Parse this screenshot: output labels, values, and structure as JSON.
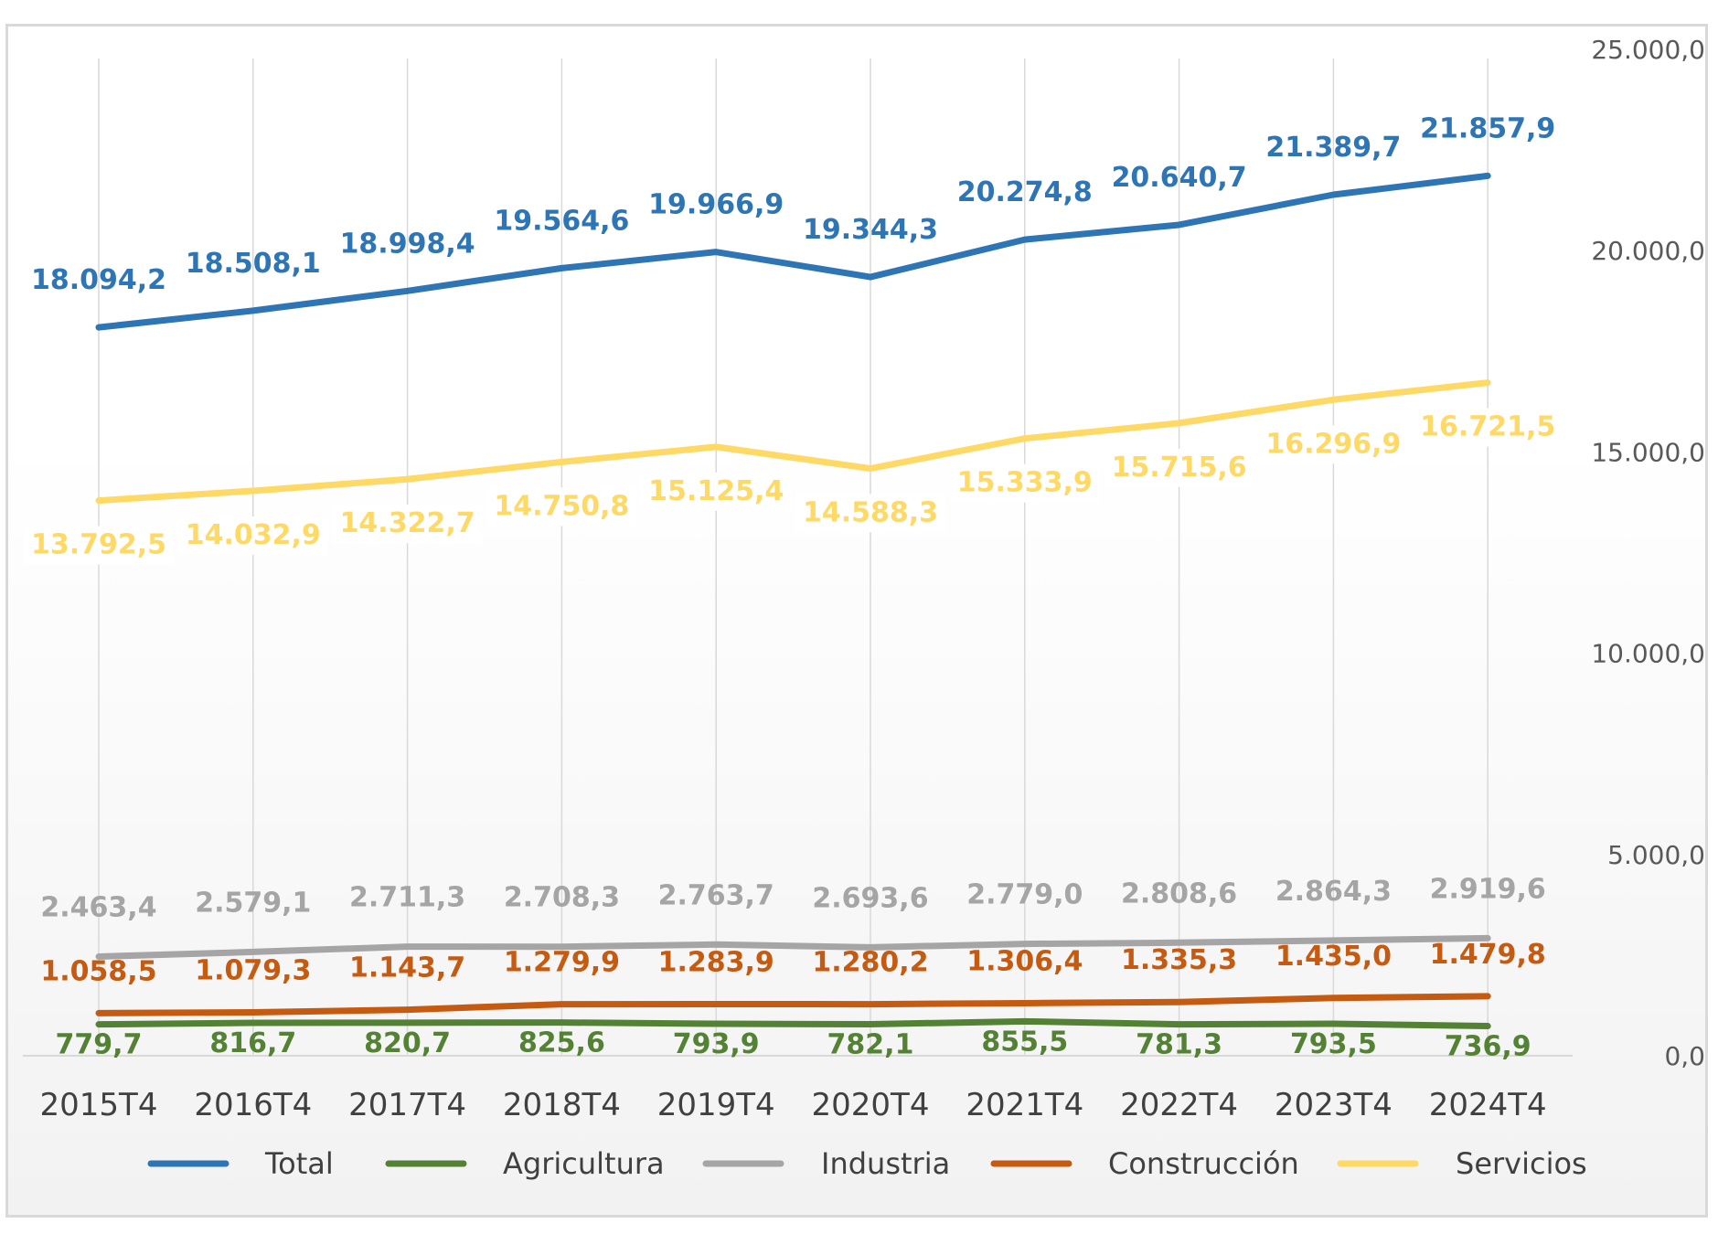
{
  "chart_data": {
    "type": "line",
    "title": "",
    "xlabel": "",
    "ylabel": "",
    "categories": [
      "2015T4",
      "2016T4",
      "2017T4",
      "2018T4",
      "2019T4",
      "2020T4",
      "2021T4",
      "2022T4",
      "2023T4",
      "2024T4"
    ],
    "ylim": [
      0,
      25000
    ],
    "y_axis_position": "right",
    "y_ticks": [
      "0,0",
      "5.000,0",
      "10.000,0",
      "15.000,0",
      "20.000,0",
      "25.000,0"
    ],
    "grid": "vertical",
    "legend_position": "bottom",
    "series": [
      {
        "name": "Total",
        "color": "#2e75b6",
        "values": [
          18094.2,
          18508.1,
          18998.4,
          19564.6,
          19966.9,
          19344.3,
          20274.8,
          20640.7,
          21389.7,
          21857.9
        ],
        "labels": [
          "18.094,2",
          "18.508,1",
          "18.998,4",
          "19.564,6",
          "19.966,9",
          "19.344,3",
          "20.274,8",
          "20.640,7",
          "21.389,7",
          "21.857,9"
        ]
      },
      {
        "name": "Agricultura",
        "color": "#548235",
        "values": [
          779.7,
          816.7,
          820.7,
          825.6,
          793.9,
          782.1,
          855.5,
          781.3,
          793.5,
          736.9
        ],
        "labels": [
          "779,7",
          "816,7",
          "820,7",
          "825,6",
          "793,9",
          "782,1",
          "855,5",
          "781,3",
          "793,5",
          "736,9"
        ]
      },
      {
        "name": "Industria",
        "color": "#a5a5a5",
        "values": [
          2463.4,
          2579.1,
          2711.3,
          2708.3,
          2763.7,
          2693.6,
          2779.0,
          2808.6,
          2864.3,
          2919.6
        ],
        "labels": [
          "2.463,4",
          "2.579,1",
          "2.711,3",
          "2.708,3",
          "2.763,7",
          "2.693,6",
          "2.779,0",
          "2.808,6",
          "2.864,3",
          "2.919,6"
        ]
      },
      {
        "name": "Construcción",
        "color": "#c55a11",
        "values": [
          1058.5,
          1079.3,
          1143.7,
          1279.9,
          1283.9,
          1280.2,
          1306.4,
          1335.3,
          1435.0,
          1479.8
        ],
        "labels": [
          "1.058,5",
          "1.079,3",
          "1.143,7",
          "1.279,9",
          "1.283,9",
          "1.280,2",
          "1.306,4",
          "1.335,3",
          "1.435,0",
          "1.479,8"
        ]
      },
      {
        "name": "Servicios",
        "color": "#ffd966",
        "values": [
          13792.5,
          14032.9,
          14322.7,
          14750.8,
          15125.4,
          14588.3,
          15333.9,
          15715.6,
          16296.9,
          16721.5
        ],
        "labels": [
          "13.792,5",
          "14.032,9",
          "14.322,7",
          "14.750,8",
          "15.125,4",
          "14.588,3",
          "15.333,9",
          "15.715,6",
          "16.296,9",
          "16.721,5"
        ]
      }
    ]
  }
}
